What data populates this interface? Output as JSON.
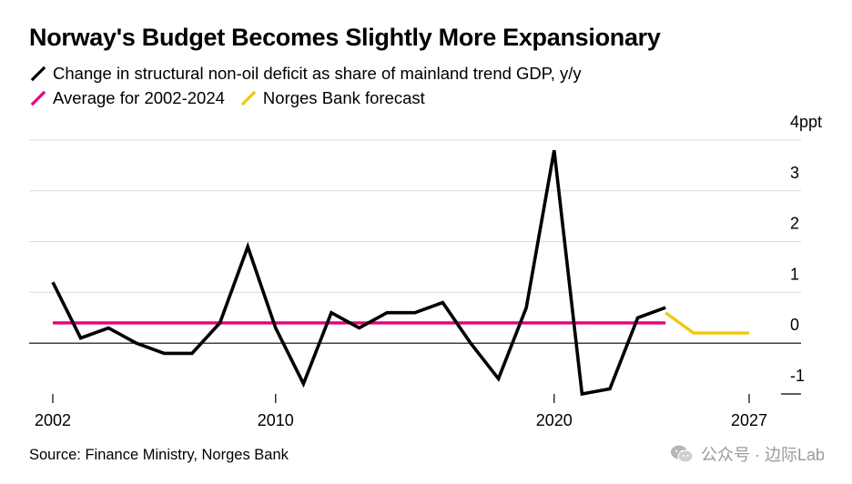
{
  "title": "Norway's Budget Becomes Slightly More Expansionary",
  "legend": [
    {
      "label": "Change in structural non-oil deficit as share of mainland trend GDP, y/y",
      "color": "#000000"
    },
    {
      "label": "Average for 2002-2024",
      "color": "#e6007e"
    },
    {
      "label": "Norges Bank forecast",
      "color": "#f2c811"
    }
  ],
  "source": "Source: Finance Ministry, Norges Bank",
  "watermark": "公众号 · 边际Lab",
  "chart_data": {
    "type": "line",
    "title": "Norway's Budget Becomes Slightly More Expansionary",
    "xlabel": "",
    "ylabel": "",
    "xlim": [
      2002,
      2027
    ],
    "ylim": [
      -1,
      4
    ],
    "y_ticks": [
      4,
      3,
      2,
      1,
      0,
      -1
    ],
    "y_tick_labels": [
      "4ppt",
      "3",
      "2",
      "1",
      "0",
      "-1"
    ],
    "x_ticks": [
      2002,
      2010,
      2020,
      2027
    ],
    "x_tick_labels": [
      "2002",
      "2010",
      "2020",
      "2027"
    ],
    "grid": true,
    "series": [
      {
        "name": "Change in structural non-oil deficit as share of mainland trend GDP, y/y",
        "color": "#000000",
        "x": [
          2002,
          2003,
          2004,
          2005,
          2006,
          2007,
          2008,
          2009,
          2010,
          2011,
          2012,
          2013,
          2014,
          2015,
          2016,
          2017,
          2018,
          2019,
          2020,
          2021,
          2022,
          2023,
          2024
        ],
        "values": [
          1.2,
          0.1,
          0.3,
          0.0,
          -0.2,
          -0.2,
          0.4,
          1.9,
          0.3,
          -0.8,
          0.6,
          0.3,
          0.6,
          0.6,
          0.8,
          0.0,
          -0.7,
          0.7,
          3.8,
          -1.0,
          -0.9,
          0.5,
          0.7
        ]
      },
      {
        "name": "Average for 2002-2024",
        "color": "#e6007e",
        "x": [
          2002,
          2024
        ],
        "values": [
          0.4,
          0.4
        ]
      },
      {
        "name": "Norges Bank forecast",
        "color": "#f2c811",
        "x": [
          2024,
          2025,
          2026,
          2027
        ],
        "values": [
          0.6,
          0.2,
          0.2,
          0.2
        ]
      }
    ]
  }
}
